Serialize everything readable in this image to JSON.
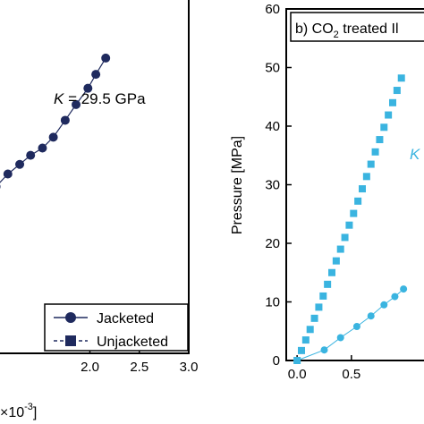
{
  "chart_data": [
    {
      "type": "line",
      "panel": "left",
      "xlabel": "×10",
      "xlabel_exponent": "-3",
      "x_ticks": [
        2.0,
        2.5,
        3.0
      ],
      "x_tick_labels": [
        "2.0",
        "2.5",
        "3.0"
      ],
      "xlim": [
        1.0,
        3.0
      ],
      "ylim": [
        0,
        60
      ],
      "annotation": {
        "italic": "K",
        "text": " = 29.5 GPa",
        "color": "#000000"
      },
      "legend": {
        "placement": "bottom-right",
        "entries": [
          {
            "label": "Jacketed",
            "marker": "circle"
          },
          {
            "label": "Unjacketed",
            "marker": "square"
          }
        ]
      },
      "series": [
        {
          "marker": "circle",
          "color": "#1f2a5e",
          "x": [
            1.05,
            1.17,
            1.29,
            1.4,
            1.52,
            1.63,
            1.75,
            1.86,
            1.98,
            2.06,
            2.16
          ],
          "y": [
            27.6,
            29.7,
            31.3,
            32.8,
            34.0,
            35.8,
            38.6,
            41.2,
            43.9,
            46.2,
            48.9
          ]
        }
      ]
    },
    {
      "type": "scatter",
      "panel": "right",
      "title": "b) CO",
      "title_subscript": "2",
      "title_rest": " treated Il",
      "ylabel": "Pressure [MPa]",
      "ylim": [
        0,
        60
      ],
      "y_ticks": [
        0,
        10,
        20,
        30,
        40,
        50,
        60
      ],
      "y_tick_labels": [
        "0",
        "10",
        "20",
        "30",
        "40",
        "50",
        "60"
      ],
      "xlim": [
        -0.1,
        1.3
      ],
      "x_ticks": [
        0.0,
        0.5
      ],
      "x_tick_labels": [
        "0.0",
        "0.5"
      ],
      "annotation": {
        "italic": "K",
        "text": "",
        "color": "#3ab4e0"
      },
      "series": [
        {
          "marker": "square",
          "color": "#3ab4e0",
          "x": [
            0.0,
            0.04,
            0.08,
            0.12,
            0.16,
            0.2,
            0.24,
            0.28,
            0.32,
            0.36,
            0.4,
            0.44,
            0.48,
            0.52,
            0.56,
            0.6,
            0.64,
            0.68,
            0.72,
            0.76,
            0.8,
            0.84,
            0.88,
            0.92,
            0.96
          ],
          "y": [
            0.0,
            1.7,
            3.5,
            5.3,
            7.2,
            9.1,
            11.0,
            13.0,
            15.0,
            17.0,
            19.0,
            21.0,
            23.1,
            25.1,
            27.2,
            29.3,
            31.4,
            33.5,
            35.6,
            37.7,
            39.8,
            41.9,
            44.0,
            46.1,
            48.2
          ]
        },
        {
          "marker": "circle",
          "color": "#3ab4e0",
          "x": [
            0.0,
            0.25,
            0.4,
            0.55,
            0.68,
            0.8,
            0.9,
            0.98
          ],
          "y": [
            0.0,
            1.8,
            3.9,
            5.8,
            7.6,
            9.5,
            10.9,
            12.2
          ]
        }
      ]
    }
  ]
}
